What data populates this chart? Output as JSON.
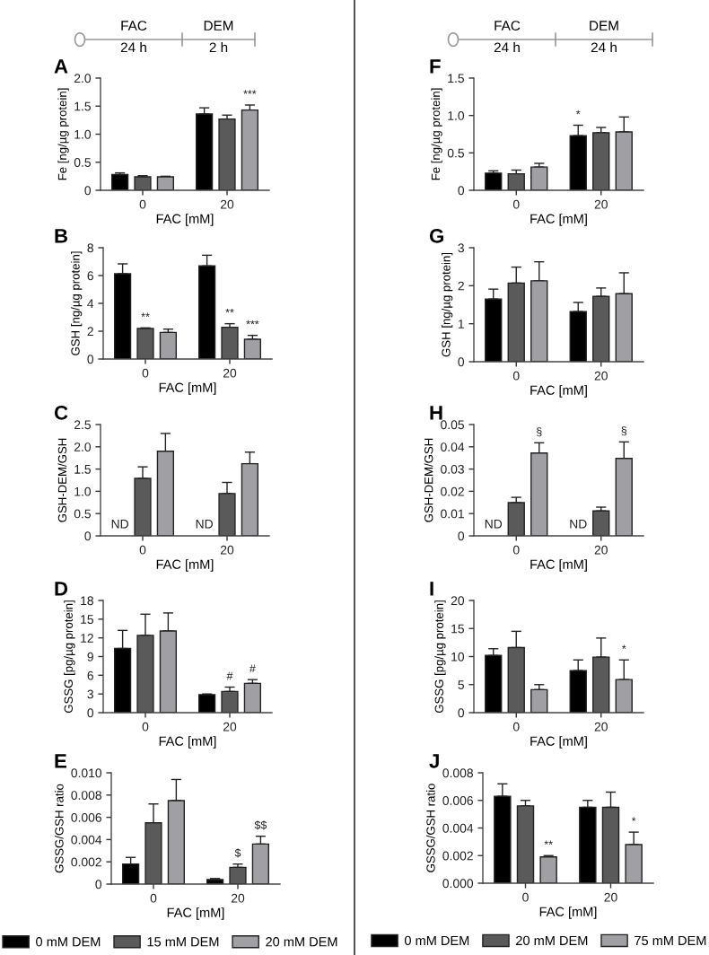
{
  "chart_data": [
    {
      "type": "bar",
      "title": "A",
      "xlabel": "FAC [mM]",
      "ylabel": "Fe [ng/µg protein]",
      "categories": [
        "0",
        "20"
      ],
      "series": [
        {
          "color": "#000000",
          "values": [
            0.28,
            1.36
          ],
          "errors": [
            [
              0.28,
              0.31
            ],
            [
              1.36,
              1.47
            ]
          ]
        },
        {
          "color": "#5a5a5a",
          "values": [
            0.24,
            1.27
          ],
          "errors": [
            [
              0.24,
              0.26
            ],
            [
              1.27,
              1.34
            ]
          ]
        },
        {
          "color": "#a0a0a4",
          "values": [
            0.24,
            1.43
          ],
          "errors": [
            [
              0.24,
              0.25
            ],
            [
              1.43,
              1.52
            ]
          ]
        }
      ],
      "ylim": [
        0,
        2.0
      ],
      "yticks": [
        0,
        0.5,
        {
          "value": 1,
          "label": "1.0"
        },
        1.5,
        {
          "value": 2,
          "label": "2.0"
        }
      ],
      "annotations": [
        "FAC",
        "24 h",
        "DEM",
        "2 h",
        "***"
      ]
    },
    {
      "type": "bar",
      "title": "B",
      "xlabel": "FAC [mM]",
      "ylabel": "GSH [ng/µg protein]",
      "categories": [
        "0",
        "20"
      ],
      "series": [
        {
          "color": "#000000",
          "values": [
            6.13,
            6.69
          ],
          "errors": [
            [
              6.13,
              6.84
            ],
            [
              6.69,
              7.46
            ]
          ]
        },
        {
          "color": "#5a5a5a",
          "values": [
            2.19,
            2.28
          ],
          "errors": [
            [
              2.19,
              2.24
            ],
            [
              2.28,
              2.54
            ]
          ]
        },
        {
          "color": "#a0a0a4",
          "values": [
            1.91,
            1.42
          ],
          "errors": [
            [
              1.91,
              2.15
            ],
            [
              1.42,
              1.7
            ]
          ]
        }
      ],
      "ylim": [
        0,
        8
      ],
      "yticks": [
        0,
        2,
        4,
        6,
        8
      ],
      "annotations": [
        {
          "text": "**",
          "x": "0",
          "y": 2.24
        },
        {
          "text": "**",
          "x": "20",
          "y": 2.54
        },
        "***"
      ]
    },
    {
      "type": "bar",
      "title": "C",
      "xlabel": "FAC [mM]",
      "ylabel": "GSH-DEM/GSH",
      "categories": [
        "0",
        "20"
      ],
      "series": [
        {
          "color": "#000000",
          "values": [
            null,
            null
          ],
          "errors": [
            null,
            null
          ]
        },
        {
          "color": "#5a5a5a",
          "values": [
            1.29,
            0.95
          ],
          "errors": [
            [
              1.29,
              1.55
            ],
            [
              0.95,
              1.2
            ]
          ]
        },
        {
          "color": "#a0a0a4",
          "values": [
            1.9,
            1.62
          ],
          "errors": [
            [
              1.9,
              2.3
            ],
            [
              1.62,
              1.88
            ]
          ]
        }
      ],
      "ylim": [
        0,
        2.5
      ],
      "yticks": [
        0,
        0.5,
        {
          "value": 1,
          "label": "1.0"
        },
        1.5,
        {
          "value": 2,
          "label": "2.0"
        },
        2.5
      ],
      "annotations": [
        "ND",
        "ND"
      ]
    },
    {
      "type": "bar",
      "title": "D",
      "xlabel": "FAC [mM]",
      "ylabel": "GSSG [pg/µg protein]",
      "categories": [
        "0",
        "20"
      ],
      "series": [
        {
          "color": "#000000",
          "values": [
            10.3,
            2.9
          ],
          "errors": [
            [
              10.3,
              13.2
            ],
            [
              2.9,
              3.0
            ]
          ]
        },
        {
          "color": "#5a5a5a",
          "values": [
            12.4,
            3.4
          ],
          "errors": [
            [
              12.4,
              15.8
            ],
            [
              3.4,
              4.1
            ]
          ]
        },
        {
          "color": "#a0a0a4",
          "values": [
            13.1,
            4.7
          ],
          "errors": [
            [
              13.1,
              16.0
            ],
            [
              4.7,
              5.3
            ]
          ]
        }
      ],
      "ylim": [
        0,
        18
      ],
      "yticks": [
        0,
        3,
        6,
        9,
        12,
        15,
        18
      ],
      "annotations": [
        {
          "text": "#",
          "x": "20",
          "y": 4.1
        },
        "#"
      ]
    },
    {
      "type": "bar",
      "title": "E",
      "xlabel": "FAC [mM]",
      "ylabel": "GSSG/GSH ratio",
      "categories": [
        "0",
        "20"
      ],
      "series": [
        {
          "name": "0 mM DEM",
          "color": "#000000",
          "values": [
            0.0018,
            0.0004
          ],
          "errors": [
            [
              0.0018,
              0.0024
            ],
            [
              0.0004,
              0.0005
            ]
          ]
        },
        {
          "name": "15 mM DEM",
          "color": "#5a5a5a",
          "values": [
            0.0055,
            0.0015
          ],
          "errors": [
            [
              0.0055,
              0.0072
            ],
            [
              0.0015,
              0.0018
            ]
          ]
        },
        {
          "name": "20 mM DEM",
          "color": "#a0a0a4",
          "values": [
            0.0075,
            0.0036
          ],
          "errors": [
            [
              0.0075,
              0.0094
            ],
            [
              0.0036,
              0.0043
            ]
          ]
        }
      ],
      "ylim": [
        0,
        0.01
      ],
      "yticks": [
        0,
        0.002,
        0.004,
        0.006,
        0.008,
        {
          "value": 0.01,
          "label": "0.010"
        }
      ],
      "legend": "bottom",
      "annotations": [
        {
          "text": "$",
          "x": "20",
          "y": 0.0018
        },
        "$$"
      ]
    },
    {
      "type": "bar",
      "title": "F",
      "xlabel": "FAC [mM]",
      "ylabel": "Fe [ng/µg protein]",
      "categories": [
        "0",
        "20"
      ],
      "series": [
        {
          "color": "#000000",
          "values": [
            0.23,
            0.73
          ],
          "errors": [
            [
              0.23,
              0.26
            ],
            [
              0.73,
              0.87
            ]
          ]
        },
        {
          "color": "#5a5a5a",
          "values": [
            0.22,
            0.77
          ],
          "errors": [
            [
              0.22,
              0.27
            ],
            [
              0.77,
              0.84
            ]
          ]
        },
        {
          "color": "#a0a0a4",
          "values": [
            0.31,
            0.78
          ],
          "errors": [
            [
              0.31,
              0.36
            ],
            [
              0.78,
              0.98
            ]
          ]
        }
      ],
      "ylim": [
        0,
        1.5
      ],
      "yticks": [
        0,
        0.5,
        {
          "value": 1,
          "label": "1.0"
        },
        1.5
      ],
      "annotations": [
        "FAC",
        "24 h",
        "DEM",
        "24 h",
        {
          "text": "*",
          "x": "20",
          "y": 0.87
        }
      ]
    },
    {
      "type": "bar",
      "title": "G",
      "xlabel": "FAC [mM]",
      "ylabel": "GSH [ng/µg protein]",
      "categories": [
        "0",
        "20"
      ],
      "series": [
        {
          "color": "#000000",
          "values": [
            1.65,
            1.32
          ],
          "errors": [
            [
              1.65,
              1.91
            ],
            [
              1.32,
              1.56
            ]
          ]
        },
        {
          "color": "#5a5a5a",
          "values": [
            2.07,
            1.72
          ],
          "errors": [
            [
              2.07,
              2.49
            ],
            [
              1.72,
              1.94
            ]
          ]
        },
        {
          "color": "#a0a0a4",
          "values": [
            2.13,
            1.79
          ],
          "errors": [
            [
              2.13,
              2.63
            ],
            [
              1.79,
              2.34
            ]
          ]
        }
      ],
      "ylim": [
        0,
        3
      ],
      "yticks": [
        0,
        1,
        2,
        3
      ]
    },
    {
      "type": "bar",
      "title": "H",
      "xlabel": "FAC [mM]",
      "ylabel": "GSH-DEM/GSH",
      "categories": [
        "0",
        "20"
      ],
      "series": [
        {
          "color": "#000000",
          "values": [
            null,
            null
          ],
          "errors": [
            null,
            null
          ]
        },
        {
          "color": "#5a5a5a",
          "values": [
            0.0149,
            0.0112
          ],
          "errors": [
            [
              0.0149,
              0.0173
            ],
            [
              0.0112,
              0.0129
            ]
          ]
        },
        {
          "color": "#a0a0a4",
          "values": [
            0.0372,
            0.0348
          ],
          "errors": [
            [
              0.0372,
              0.0418
            ],
            [
              0.0348,
              0.0422
            ]
          ]
        }
      ],
      "ylim": [
        0,
        0.05
      ],
      "yticks": [
        0,
        0.01,
        0.02,
        0.03,
        0.04,
        0.05
      ],
      "annotations": [
        "ND",
        "ND",
        "§",
        "§"
      ]
    },
    {
      "type": "bar",
      "title": "I",
      "xlabel": "FAC [mM]",
      "ylabel": "GSSG [pg/µg protein]",
      "categories": [
        "0",
        "20"
      ],
      "series": [
        {
          "color": "#000000",
          "values": [
            10.2,
            7.5
          ],
          "errors": [
            [
              10.2,
              11.4
            ],
            [
              7.5,
              9.4
            ]
          ]
        },
        {
          "color": "#5a5a5a",
          "values": [
            11.6,
            9.9
          ],
          "errors": [
            [
              11.6,
              14.5
            ],
            [
              9.9,
              13.3
            ]
          ]
        },
        {
          "color": "#a0a0a4",
          "values": [
            4.1,
            5.9
          ],
          "errors": [
            [
              4.1,
              5.0
            ],
            [
              5.9,
              9.4
            ]
          ]
        }
      ],
      "ylim": [
        0,
        20
      ],
      "yticks": [
        0,
        5,
        10,
        15,
        20
      ],
      "annotations": [
        "*"
      ]
    },
    {
      "type": "bar",
      "title": "J",
      "xlabel": "FAC [mM]",
      "ylabel": "GSSG/GSH ratio",
      "categories": [
        "0",
        "20"
      ],
      "series": [
        {
          "name": "0 mM DEM",
          "color": "#000000",
          "values": [
            0.0063,
            0.0055
          ],
          "errors": [
            [
              0.0063,
              0.0072
            ],
            [
              0.0055,
              0.006
            ]
          ]
        },
        {
          "name": "20 mM DEM",
          "color": "#5a5a5a",
          "values": [
            0.0056,
            0.0055
          ],
          "errors": [
            [
              0.0056,
              0.006
            ],
            [
              0.0055,
              0.0066
            ]
          ]
        },
        {
          "name": "75 mM DEM",
          "color": "#a0a0a4",
          "values": [
            0.0019,
            0.0028
          ],
          "errors": [
            [
              0.0019,
              0.002
            ],
            [
              0.0028,
              0.0037
            ]
          ]
        }
      ],
      "ylim": [
        0,
        0.008
      ],
      "yticks": [
        {
          "value": 0,
          "label": "0.000"
        },
        0.002,
        0.004,
        0.006,
        0.008
      ],
      "legend": "bottom",
      "annotations": [
        "*",
        "**"
      ]
    }
  ]
}
